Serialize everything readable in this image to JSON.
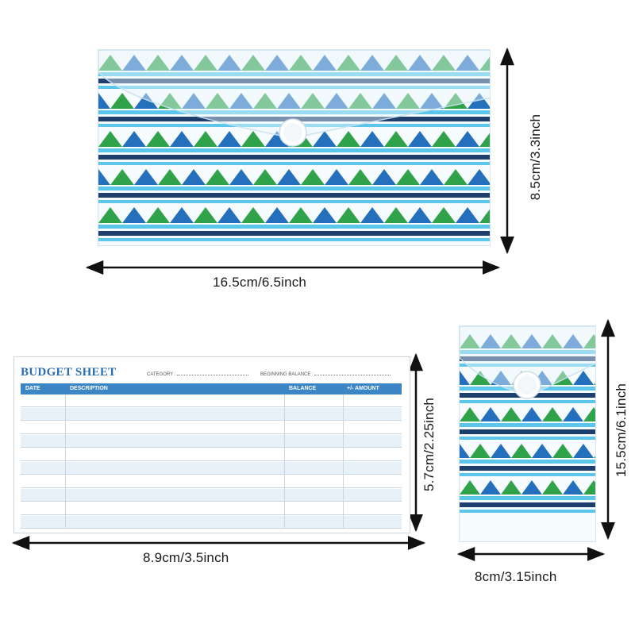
{
  "large_envelope": {
    "width_label": "16.5cm/6.5inch",
    "height_label": "8.5cm/3.3inch"
  },
  "budget_sheet": {
    "title": "BUDGET SHEET",
    "category_label": "CATEGORY :",
    "beginning_balance_label": "BEGINNING BALANCE :",
    "columns": [
      "DATE",
      "DESCRIPTION",
      "BALANCE",
      "+/- AMOUNT"
    ],
    "row_count": 10,
    "width_label": "8.9cm/3.5inch",
    "height_label": "5.7cm/2.25inch"
  },
  "small_envelope": {
    "width_label": "8cm/3.15inch",
    "height_label": "15.5cm/6.1inch"
  },
  "colors": {
    "blue": "#2470bd",
    "green": "#2fa24a",
    "navy": "#1c3f6e",
    "cyan": "#5cc6ea",
    "arrow": "#111111",
    "sheet_header": "#3d86c6"
  }
}
